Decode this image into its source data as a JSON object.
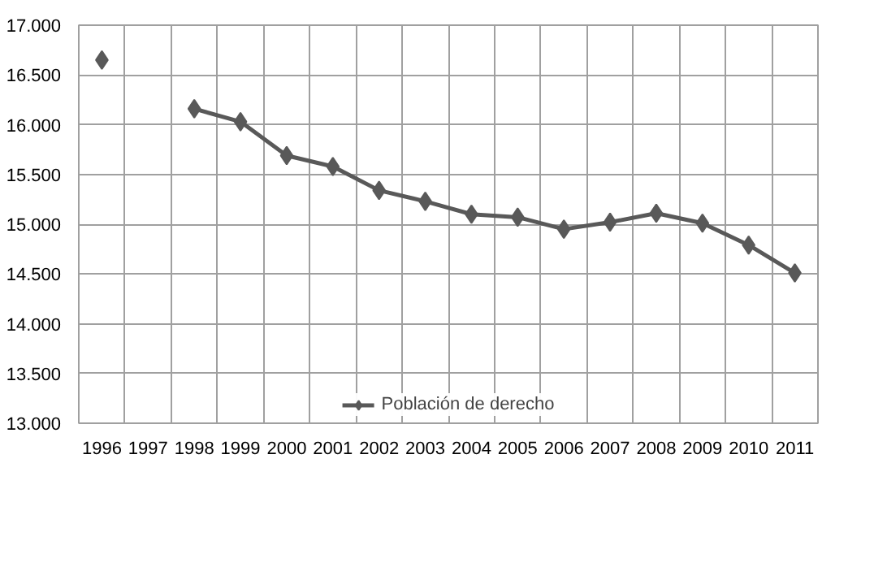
{
  "chart_data": {
    "type": "line",
    "categories": [
      "1996",
      "1997",
      "1998",
      "1999",
      "2000",
      "2001",
      "2002",
      "2003",
      "2004",
      "2005",
      "2006",
      "2007",
      "2008",
      "2009",
      "2010",
      "2011"
    ],
    "series": [
      {
        "name": "Población de derecho",
        "color": "#595959",
        "values": [
          16650,
          null,
          16160,
          16030,
          15690,
          15580,
          15340,
          15230,
          15100,
          15070,
          14950,
          15020,
          15110,
          15010,
          14790,
          14510
        ]
      }
    ],
    "ylim": [
      13000,
      17000
    ],
    "yticks": [
      {
        "value": 13000,
        "label": "13.000"
      },
      {
        "value": 13500,
        "label": "13.500"
      },
      {
        "value": 14000,
        "label": "14.000"
      },
      {
        "value": 14500,
        "label": "14.500"
      },
      {
        "value": 15000,
        "label": "15.000"
      },
      {
        "value": 15500,
        "label": "15.500"
      },
      {
        "value": 16000,
        "label": "16.000"
      },
      {
        "value": 16500,
        "label": "16.500"
      },
      {
        "value": 17000,
        "label": "17.000"
      }
    ],
    "grid": true,
    "legend": "bottom",
    "marker": "diamond",
    "line_style": "solid"
  }
}
